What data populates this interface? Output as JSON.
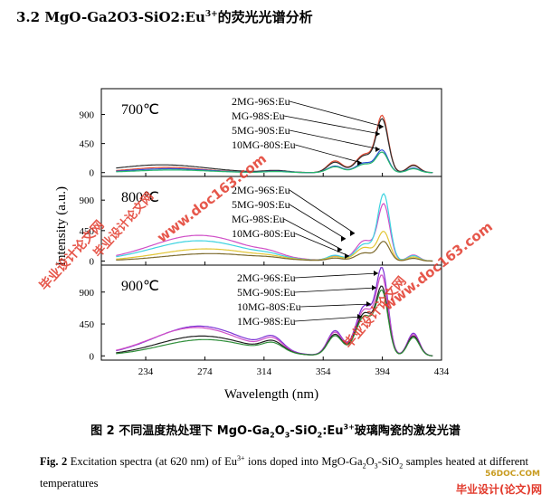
{
  "section_heading": "3.2 MgO-Ga2O3-SiO2:Eu",
  "section_heading_sup": "3+",
  "section_heading_tail": "的荧光光谱分析",
  "caption_cn": {
    "prefix": "图 2 不同温度热处理下 MgO-Ga",
    "s1": "2",
    "mid1": "O",
    "s2": "3",
    "mid2": "-SiO",
    "s3": "2",
    "mid3": ":Eu",
    "sup": "3+",
    "tail": "玻璃陶瓷的激发光谱"
  },
  "caption_en": {
    "label": "Fig. 2",
    "text1": " Excitation spectra (at 620 nm) of Eu",
    "sup": "3+",
    "text2": " ions doped into MgO-Ga",
    "s1": "2",
    "text3": "O",
    "s2": "3",
    "text4": "-SiO",
    "s3": "2",
    "text5": " samples heated at different temperatures"
  },
  "watermarks": [
    "毕业设计论文网",
    "www.doc163.com",
    "毕业设计论文网",
    "www.doc163.com",
    "毕业设计论文网"
  ],
  "site_mark": "毕业设计(论文)网",
  "site_logo": "56DOC.COM",
  "chart_data": {
    "type": "line",
    "xlabel": "Wavelength (nm)",
    "ylabel": "Intensity (a.u.)",
    "xlim": [
      204,
      434
    ],
    "x_ticks": [
      234,
      274,
      314,
      354,
      394,
      434
    ],
    "panels": [
      {
        "label": "700℃",
        "ylim": [
          -60,
          1300
        ],
        "y_ticks": [
          0,
          450,
          900
        ],
        "legend": [
          "2MG-96S:Eu",
          "MG-98S:Eu",
          "5MG-90S:Eu",
          "10MG-80S:Eu"
        ],
        "series": [
          {
            "name": "2MG-96S:Eu",
            "color": "#e24a33",
            "peaks": [
              [
                248,
                80,
                25
              ],
              [
                322,
                25,
                8
              ],
              [
                362,
                180,
                5
              ],
              [
                382,
                280,
                6
              ],
              [
                394,
                850,
                4
              ],
              [
                415,
                120,
                4
              ]
            ]
          },
          {
            "name": "MG-98S:Eu",
            "color": "#2d2d2d",
            "peaks": [
              [
                245,
                120,
                30
              ],
              [
                322,
                30,
                8
              ],
              [
                362,
                160,
                5
              ],
              [
                382,
                260,
                6
              ],
              [
                394,
                800,
                4
              ],
              [
                415,
                110,
                4
              ]
            ]
          },
          {
            "name": "5MG-90S:Eu",
            "color": "#2a4fd6",
            "peaks": [
              [
                250,
                60,
                25
              ],
              [
                322,
                20,
                8
              ],
              [
                362,
                100,
                5
              ],
              [
                382,
                150,
                6
              ],
              [
                394,
                330,
                4
              ],
              [
                415,
                70,
                4
              ]
            ]
          },
          {
            "name": "10MG-80S:Eu",
            "color": "#29b86b",
            "peaks": [
              [
                252,
                40,
                25
              ],
              [
                322,
                15,
                8
              ],
              [
                362,
                90,
                5
              ],
              [
                382,
                130,
                6
              ],
              [
                394,
                300,
                4
              ],
              [
                415,
                60,
                4
              ]
            ]
          }
        ]
      },
      {
        "label": "800℃",
        "ylim": [
          -60,
          1250
        ],
        "y_ticks": [
          0,
          450,
          900
        ],
        "legend": [
          "2MG-96S:Eu",
          "5MG-90S:Eu",
          "MG-98S:Eu",
          "10MG-80S:Eu"
        ],
        "series": [
          {
            "name": "2MG-96S:Eu",
            "color": "#d04fc7",
            "peaks": [
              [
                270,
                380,
                32
              ],
              [
                318,
                40,
                8
              ],
              [
                362,
                70,
                5
              ],
              [
                382,
                300,
                6
              ],
              [
                395,
                820,
                4
              ],
              [
                415,
                90,
                4
              ]
            ]
          },
          {
            "name": "5MG-90S:Eu",
            "color": "#3dd3e0",
            "peaks": [
              [
                270,
                300,
                32
              ],
              [
                318,
                30,
                8
              ],
              [
                362,
                80,
                5
              ],
              [
                382,
                250,
                6
              ],
              [
                395,
                970,
                4
              ],
              [
                415,
                80,
                4
              ]
            ]
          },
          {
            "name": "MG-98S:Eu",
            "color": "#e2c533",
            "peaks": [
              [
                275,
                180,
                32
              ],
              [
                318,
                20,
                8
              ],
              [
                362,
                60,
                5
              ],
              [
                382,
                200,
                6
              ],
              [
                395,
                420,
                4
              ],
              [
                415,
                60,
                4
              ]
            ]
          },
          {
            "name": "10MG-80S:Eu",
            "color": "#7d6b2e",
            "peaks": [
              [
                278,
                110,
                32
              ],
              [
                318,
                15,
                8
              ],
              [
                362,
                40,
                5
              ],
              [
                382,
                120,
                6
              ],
              [
                395,
                280,
                4
              ],
              [
                415,
                40,
                4
              ]
            ]
          }
        ]
      },
      {
        "label": "900℃",
        "ylim": [
          -60,
          1280
        ],
        "y_ticks": [
          0,
          450,
          900
        ],
        "legend": [
          "2MG-96S:Eu",
          "5MG-90S:Eu",
          "10MG-80S:Eu",
          "1MG-98S:Eu"
        ],
        "series": [
          {
            "name": "2MG-96S:Eu",
            "color": "#7b2fd4",
            "peaks": [
              [
                270,
                420,
                30
              ],
              [
                320,
                180,
                7
              ],
              [
                362,
                350,
                5
              ],
              [
                382,
                700,
                6
              ],
              [
                394,
                1150,
                4
              ],
              [
                415,
                320,
                4
              ]
            ]
          },
          {
            "name": "5MG-90S:Eu",
            "color": "#d04fc7",
            "peaks": [
              [
                268,
                400,
                30
              ],
              [
                320,
                170,
                7
              ],
              [
                362,
                330,
                5
              ],
              [
                382,
                650,
                6
              ],
              [
                394,
                1050,
                4
              ],
              [
                415,
                300,
                4
              ]
            ]
          },
          {
            "name": "10MG-80S:Eu",
            "color": "#1f1f1f",
            "peaks": [
              [
                272,
                280,
                30
              ],
              [
                320,
                140,
                7
              ],
              [
                362,
                300,
                5
              ],
              [
                382,
                600,
                6
              ],
              [
                394,
                900,
                4
              ],
              [
                415,
                280,
                4
              ]
            ]
          },
          {
            "name": "1MG-98S:Eu",
            "color": "#2f8f3a",
            "peaks": [
              [
                274,
                230,
                30
              ],
              [
                320,
                120,
                7
              ],
              [
                362,
                280,
                5
              ],
              [
                382,
                560,
                6
              ],
              [
                394,
                850,
                4
              ],
              [
                415,
                260,
                4
              ]
            ]
          }
        ]
      }
    ]
  }
}
